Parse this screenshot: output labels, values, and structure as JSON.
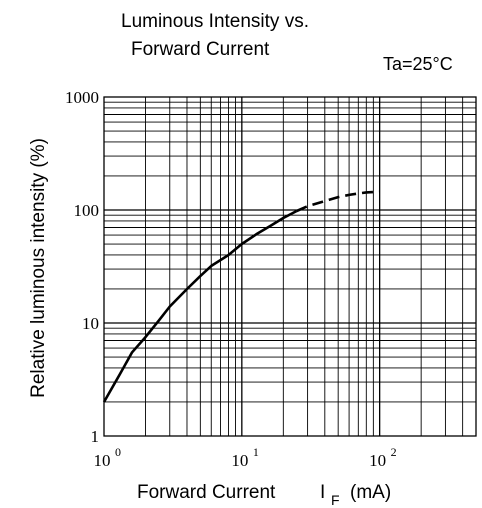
{
  "chart_data": {
    "type": "line",
    "title": [
      "Luminous Intensity vs.",
      "Forward Current"
    ],
    "condition": "Ta=25°C",
    "xlabel": {
      "main": "Forward Current",
      "symbol": "I",
      "subscript": "F",
      "unit": "(mA)"
    },
    "ylabel": "Relative luminous intensity  (%)",
    "xscale": "log",
    "yscale": "log",
    "xlim": [
      1,
      500
    ],
    "ylim": [
      1,
      1000
    ],
    "x_ticks": [
      {
        "base": "10",
        "exp": "0"
      },
      {
        "base": "10",
        "exp": "1"
      },
      {
        "base": "10",
        "exp": "2"
      }
    ],
    "y_ticks": [
      "1000",
      "100",
      "10",
      "1"
    ],
    "grid": true,
    "series": [
      {
        "style": "solid",
        "x": [
          1,
          1.3,
          1.6,
          2,
          2.5,
          3,
          4,
          5,
          6,
          8,
          10,
          13,
          16,
          20,
          25
        ],
        "y": [
          2,
          3.5,
          5.5,
          7.5,
          10.5,
          14,
          20,
          26,
          32,
          40,
          50,
          62,
          72,
          85,
          98
        ]
      },
      {
        "style": "dashed",
        "x": [
          25,
          30,
          40,
          50,
          60,
          70,
          80,
          100
        ],
        "y": [
          98,
          108,
          120,
          130,
          136,
          140,
          143,
          145
        ]
      }
    ]
  }
}
